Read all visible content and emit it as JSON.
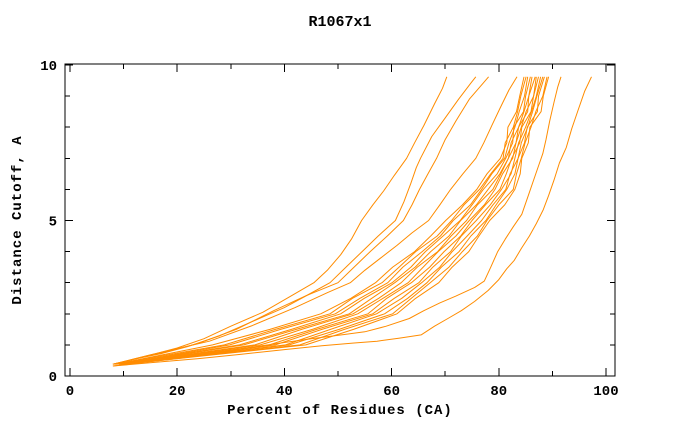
{
  "window": {
    "title": "R1067x1"
  },
  "chart_data": {
    "type": "line",
    "title": "R1067x1",
    "xlabel": "Percent of Residues (CA)",
    "ylabel": "Distance Cutoff, A",
    "xlim": [
      0,
      100
    ],
    "ylim": [
      0,
      10
    ],
    "x_major_ticks": [
      0,
      20,
      40,
      60,
      80,
      100
    ],
    "x_minor_step": 10,
    "y_major_ticks": [
      0,
      5,
      10
    ],
    "y_minor_step": 1,
    "grid": "off",
    "legend": "none",
    "line_color": "#FF8C00",
    "axis_color": "#000000",
    "background": "#FFFFFF",
    "bundle": {
      "y_levels": [
        0.38,
        1.0,
        1.5,
        2.0,
        2.5,
        3.0,
        3.5,
        4.0,
        4.5,
        5.0,
        5.5,
        6.0,
        6.5,
        7.0,
        7.5,
        8.0,
        8.5,
        9.0,
        9.62
      ],
      "curves_x": [
        [
          8.5,
          26.6,
          37.3,
          46.8,
          52.4,
          57.0,
          60.2,
          64.3,
          67.3,
          70.1,
          73.2,
          75.9,
          77.8,
          80.3,
          81.5,
          81.7,
          83.3,
          83.9,
          84.7
        ],
        [
          8.3,
          28.8,
          38.3,
          48.5,
          52.7,
          58.2,
          61.4,
          64.5,
          68.5,
          71.2,
          73.5,
          76.4,
          78.5,
          80.8,
          81.2,
          82.7,
          83.5,
          84.1,
          85.1
        ],
        [
          9.2,
          29.8,
          39.3,
          49.5,
          54.1,
          59.3,
          62.1,
          65.7,
          69.1,
          71.5,
          74.7,
          76.8,
          78.7,
          81.1,
          81.9,
          83.0,
          83.8,
          84.8,
          85.4
        ],
        [
          8.7,
          31.6,
          41.3,
          50.5,
          54.9,
          60.1,
          63.6,
          66.3,
          69.6,
          72.8,
          75.0,
          77.1,
          79.7,
          81.3,
          82.6,
          82.8,
          84.6,
          85.0,
          85.9
        ],
        [
          9.3,
          32.4,
          42.2,
          52.1,
          56.3,
          60.6,
          64.4,
          67.3,
          70.7,
          72.9,
          75.8,
          78.0,
          80.2,
          81.8,
          82.3,
          83.7,
          84.7,
          85.6,
          86.2
        ],
        [
          9.1,
          34.5,
          43.2,
          52.8,
          57.6,
          61.8,
          64.8,
          68.6,
          71.1,
          74.0,
          76.0,
          78.9,
          80.4,
          81.8,
          83.2,
          83.7,
          85.4,
          85.6,
          86.8
        ],
        [
          9.5,
          35.5,
          45.2,
          53.7,
          58.4,
          63.1,
          65.9,
          68.7,
          72.0,
          74.5,
          77.3,
          79.3,
          80.7,
          82.6,
          83.2,
          84.2,
          85.1,
          86.5,
          87.0
        ],
        [
          9.2,
          37.2,
          46.0,
          55.6,
          59.1,
          63.7,
          67.1,
          69.8,
          72.9,
          75.0,
          77.5,
          80.2,
          81.4,
          82.4,
          83.9,
          84.3,
          86.0,
          86.5,
          87.4
        ],
        [
          9.8,
          38.3,
          47.0,
          56.5,
          60.5,
          65.1,
          67.7,
          71.0,
          73.0,
          75.8,
          78.4,
          80.5,
          82.3,
          83.0,
          83.7,
          85.0,
          86.1,
          87.0,
          87.8
        ],
        [
          9.6,
          40.2,
          48.6,
          57.2,
          61.9,
          65.6,
          69.0,
          71.3,
          74.1,
          76.8,
          78.9,
          81.3,
          82.1,
          83.6,
          84.2,
          85.4,
          86.3,
          87.1,
          88.2
        ],
        [
          10.0,
          40.9,
          50.2,
          58.7,
          63.0,
          66.6,
          69.3,
          72.6,
          74.8,
          77.6,
          79.5,
          81.5,
          83.0,
          83.6,
          84.8,
          85.3,
          87.2,
          87.4,
          88.5
        ],
        [
          9.7,
          42.9,
          51.2,
          60.2,
          63.7,
          67.2,
          70.7,
          73.2,
          76.0,
          77.8,
          80.0,
          82.7,
          83.3,
          84.2,
          84.9,
          86.0,
          86.9,
          88.2,
          89.0
        ],
        [
          10.3,
          44.0,
          52.9,
          61.0,
          64.5,
          68.8,
          71.3,
          74.4,
          76.3,
          78.3,
          81.1,
          83.0,
          84.0,
          84.3,
          85.5,
          85.8,
          87.9,
          88.3,
          89.3
        ]
      ]
    },
    "outlier_curves": [
      {
        "points": [
          [
            8,
            0.38
          ],
          [
            12,
            0.55
          ],
          [
            16,
            0.72
          ],
          [
            20,
            0.9
          ],
          [
            25,
            1.2
          ],
          [
            30,
            1.6
          ],
          [
            36,
            2.05
          ],
          [
            41,
            2.55
          ],
          [
            45.5,
            3.0
          ],
          [
            48,
            3.4
          ],
          [
            50.5,
            3.9
          ],
          [
            52.5,
            4.4
          ],
          [
            54.4,
            5.0
          ],
          [
            56.5,
            5.5
          ],
          [
            58.5,
            5.95
          ],
          [
            60.5,
            6.45
          ],
          [
            62.8,
            7.0
          ],
          [
            64.3,
            7.5
          ],
          [
            66,
            8.05
          ],
          [
            68,
            8.75
          ],
          [
            69.5,
            9.25
          ],
          [
            70.3,
            9.62
          ]
        ]
      },
      {
        "points": [
          [
            8,
            0.38
          ],
          [
            13,
            0.58
          ],
          [
            17,
            0.72
          ],
          [
            22,
            0.95
          ],
          [
            28,
            1.3
          ],
          [
            34,
            1.75
          ],
          [
            40,
            2.2
          ],
          [
            44.5,
            2.62
          ],
          [
            48.5,
            3.0
          ],
          [
            51.5,
            3.5
          ],
          [
            54.5,
            4.0
          ],
          [
            57.5,
            4.5
          ],
          [
            60.7,
            5.0
          ],
          [
            62.3,
            5.6
          ],
          [
            63.6,
            6.2
          ],
          [
            64.6,
            6.7
          ],
          [
            65.4,
            7.0
          ],
          [
            67.5,
            7.7
          ],
          [
            70,
            8.3
          ],
          [
            72.5,
            8.9
          ],
          [
            74.7,
            9.4
          ],
          [
            75.7,
            9.62
          ]
        ]
      },
      {
        "points": [
          [
            8,
            0.38
          ],
          [
            14,
            0.62
          ],
          [
            18,
            0.78
          ],
          [
            24,
            1.05
          ],
          [
            31,
            1.5
          ],
          [
            38,
            2.1
          ],
          [
            44,
            2.58
          ],
          [
            50,
            3.0
          ],
          [
            53,
            3.5
          ],
          [
            56,
            4.0
          ],
          [
            59.2,
            4.5
          ],
          [
            62.2,
            5.0
          ],
          [
            63.8,
            5.5
          ],
          [
            65.2,
            6.0
          ],
          [
            66.8,
            6.5
          ],
          [
            68.4,
            7.0
          ],
          [
            70,
            7.6
          ],
          [
            72,
            8.2
          ],
          [
            74.5,
            8.9
          ],
          [
            77,
            9.4
          ],
          [
            78.1,
            9.62
          ]
        ]
      },
      {
        "points": [
          [
            8,
            0.38
          ],
          [
            15,
            0.68
          ],
          [
            20,
            0.88
          ],
          [
            26,
            1.12
          ],
          [
            34,
            1.62
          ],
          [
            42,
            2.2
          ],
          [
            48,
            2.68
          ],
          [
            52.3,
            3.0
          ],
          [
            55,
            3.4
          ],
          [
            58,
            3.8
          ],
          [
            61,
            4.2
          ],
          [
            63.8,
            4.6
          ],
          [
            66.9,
            5.0
          ],
          [
            69,
            5.5
          ],
          [
            71,
            6.0
          ],
          [
            73.3,
            6.5
          ],
          [
            75.7,
            7.0
          ],
          [
            77.2,
            7.5
          ],
          [
            78.7,
            8.05
          ],
          [
            80.2,
            8.6
          ],
          [
            81.9,
            9.2
          ],
          [
            83.4,
            9.62
          ]
        ]
      },
      {
        "points": [
          [
            8,
            0.32
          ],
          [
            14,
            0.44
          ],
          [
            20,
            0.56
          ],
          [
            27,
            0.72
          ],
          [
            33,
            0.9
          ],
          [
            39,
            1.05
          ],
          [
            45,
            1.2
          ],
          [
            51,
            1.33
          ],
          [
            55,
            1.42
          ],
          [
            59,
            1.6
          ],
          [
            63.3,
            1.85
          ],
          [
            66,
            2.1
          ],
          [
            69,
            2.35
          ],
          [
            72,
            2.57
          ],
          [
            75.5,
            2.85
          ],
          [
            77.3,
            3.05
          ],
          [
            78.5,
            3.5
          ],
          [
            79.8,
            4.0
          ],
          [
            81.2,
            4.4
          ],
          [
            82.7,
            4.8
          ],
          [
            84.3,
            5.2
          ],
          [
            85.5,
            5.8
          ],
          [
            86.5,
            6.3
          ],
          [
            87.5,
            6.8
          ],
          [
            88.2,
            7.15
          ],
          [
            88.8,
            7.6
          ],
          [
            89.5,
            8.2
          ],
          [
            90.3,
            8.8
          ],
          [
            91,
            9.3
          ],
          [
            91.6,
            9.62
          ]
        ]
      },
      {
        "points": [
          [
            8,
            0.32
          ],
          [
            16,
            0.44
          ],
          [
            24,
            0.56
          ],
          [
            32,
            0.7
          ],
          [
            40,
            0.85
          ],
          [
            47,
            0.97
          ],
          [
            53,
            1.06
          ],
          [
            57.3,
            1.12
          ],
          [
            61.5,
            1.22
          ],
          [
            65.5,
            1.32
          ],
          [
            68,
            1.6
          ],
          [
            70.5,
            1.85
          ],
          [
            73,
            2.1
          ],
          [
            75.5,
            2.4
          ],
          [
            78,
            2.75
          ],
          [
            80,
            3.1
          ],
          [
            81.5,
            3.45
          ],
          [
            82.9,
            3.72
          ],
          [
            84.2,
            4.1
          ],
          [
            85.7,
            4.5
          ],
          [
            87,
            4.9
          ],
          [
            88.3,
            5.35
          ],
          [
            89.3,
            5.8
          ],
          [
            90.3,
            6.3
          ],
          [
            91.3,
            6.85
          ],
          [
            92.6,
            7.35
          ],
          [
            93.6,
            7.95
          ],
          [
            94.8,
            8.55
          ],
          [
            96,
            9.15
          ],
          [
            97.3,
            9.62
          ]
        ]
      }
    ]
  }
}
